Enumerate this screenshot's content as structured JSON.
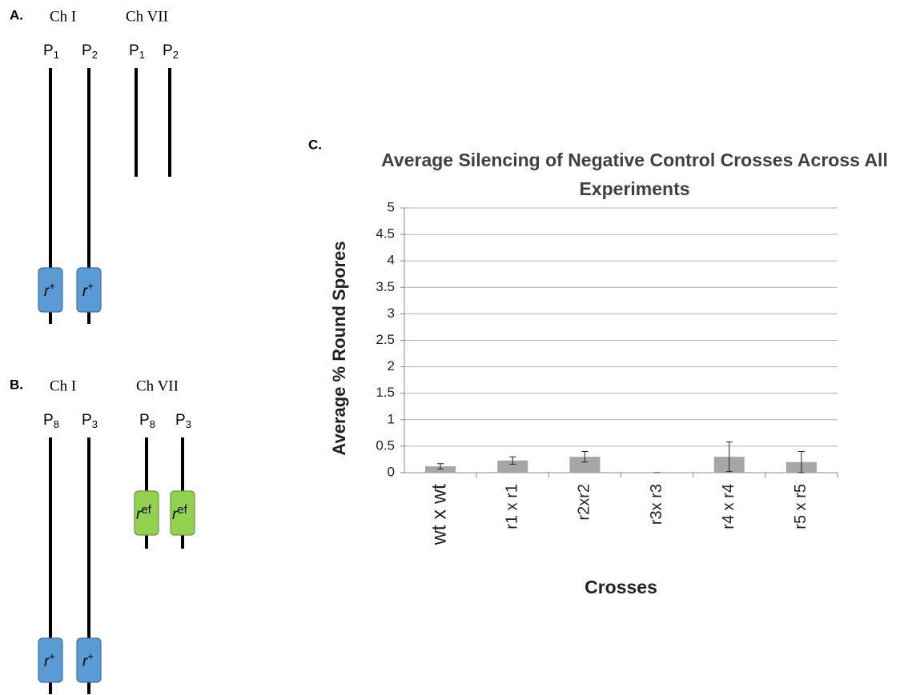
{
  "panel_a": {
    "label": "A.",
    "groups": [
      {
        "name": "Ch I",
        "chromosomes": [
          {
            "parent": "P",
            "sub": "1",
            "gene": "r",
            "sup": "+"
          },
          {
            "parent": "P",
            "sub": "2",
            "gene": "r",
            "sup": "+"
          }
        ]
      },
      {
        "name": "Ch VII",
        "chromosomes": [
          {
            "parent": "P",
            "sub": "1"
          },
          {
            "parent": "P",
            "sub": "2"
          }
        ]
      }
    ]
  },
  "panel_b": {
    "label": "B.",
    "groups": [
      {
        "name": "Ch I",
        "chromosomes": [
          {
            "parent": "P",
            "sub": "8",
            "gene": "r",
            "sup": "+"
          },
          {
            "parent": "P",
            "sub": "3",
            "gene": "r",
            "sup": "+"
          }
        ]
      },
      {
        "name": "Ch VII",
        "chromosomes": [
          {
            "parent": "P",
            "sub": "8",
            "gene": "r",
            "sup": "ef"
          },
          {
            "parent": "P",
            "sub": "3",
            "gene": "r",
            "sup": "ef"
          }
        ]
      }
    ]
  },
  "panel_c_label": "C.",
  "chart_data": {
    "type": "bar",
    "title": "Average Silencing of Negative Control Crosses Across All Experiments",
    "x_label": "Crosses",
    "y_label": "Average % Round Spores",
    "categories": [
      "wt x wt",
      "r1 x r1",
      "r2xr2",
      "r3x r3",
      "r4 x r4",
      "r5 x r5"
    ],
    "values": [
      0.12,
      0.23,
      0.3,
      0,
      0.3,
      0.2
    ],
    "errors": [
      0.05,
      0.07,
      0.1,
      0,
      0.28,
      0.2
    ],
    "color": "#a6a6a6",
    "ylim": [
      0,
      5
    ],
    "yticks": [
      0,
      0.5,
      1,
      1.5,
      2,
      2.5,
      3,
      3.5,
      4,
      4.5,
      5
    ],
    "grid": true
  }
}
